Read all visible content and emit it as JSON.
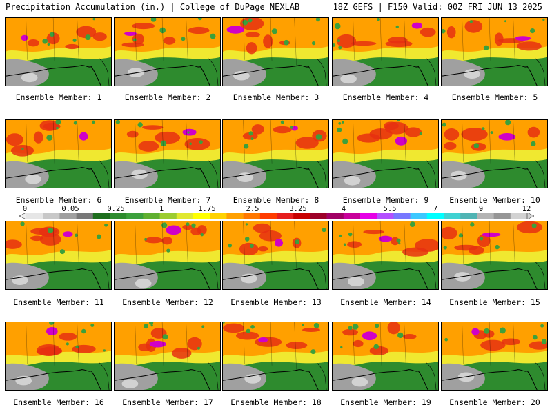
{
  "header": {
    "left": "Precipitation Accumulation (in.) | College of DuPage NEXLAB",
    "right": "18Z GEFS | F150 Valid: 00Z FRI JUN 13 2025"
  },
  "panels": [
    {
      "label": "Ensemble Member: 1"
    },
    {
      "label": "Ensemble Member: 2"
    },
    {
      "label": "Ensemble Member: 3"
    },
    {
      "label": "Ensemble Member: 4"
    },
    {
      "label": "Ensemble Member: 5"
    },
    {
      "label": "Ensemble Member: 6"
    },
    {
      "label": "Ensemble Member: 7"
    },
    {
      "label": "Ensemble Member: 8"
    },
    {
      "label": "Ensemble Member: 9"
    },
    {
      "label": "Ensemble Member: 10"
    },
    {
      "label": "Ensemble Member: 11"
    },
    {
      "label": "Ensemble Member: 12"
    },
    {
      "label": "Ensemble Member: 13"
    },
    {
      "label": "Ensemble Member: 14"
    },
    {
      "label": "Ensemble Member: 15"
    },
    {
      "label": "Ensemble Member: 16"
    },
    {
      "label": "Ensemble Member: 17"
    },
    {
      "label": "Ensemble Member: 18"
    },
    {
      "label": "Ensemble Member: 19"
    },
    {
      "label": "Ensemble Member: 20"
    }
  ],
  "colorbar": {
    "ticks": [
      "0",
      "0.05",
      "0.25",
      "1",
      "1.75",
      "2.5",
      "3.25",
      "4",
      "5.5",
      "7",
      "9",
      "12"
    ],
    "colors": [
      "#e6e6e6",
      "#c8c8c8",
      "#a0a0a0",
      "#787878",
      "#1e6e1e",
      "#2e8b2e",
      "#3ca03c",
      "#60b030",
      "#9ccc30",
      "#e0e830",
      "#ffff00",
      "#ffd200",
      "#ffa000",
      "#ff7800",
      "#ff3c00",
      "#e61e1e",
      "#c80000",
      "#9c0028",
      "#a00064",
      "#c8009a",
      "#e600e6",
      "#b450ff",
      "#7878ff",
      "#3cc8ff",
      "#00ffff",
      "#40d2d2",
      "#50b4b4",
      "#b4b4b4",
      "#969696",
      "#d2d2d2"
    ]
  }
}
